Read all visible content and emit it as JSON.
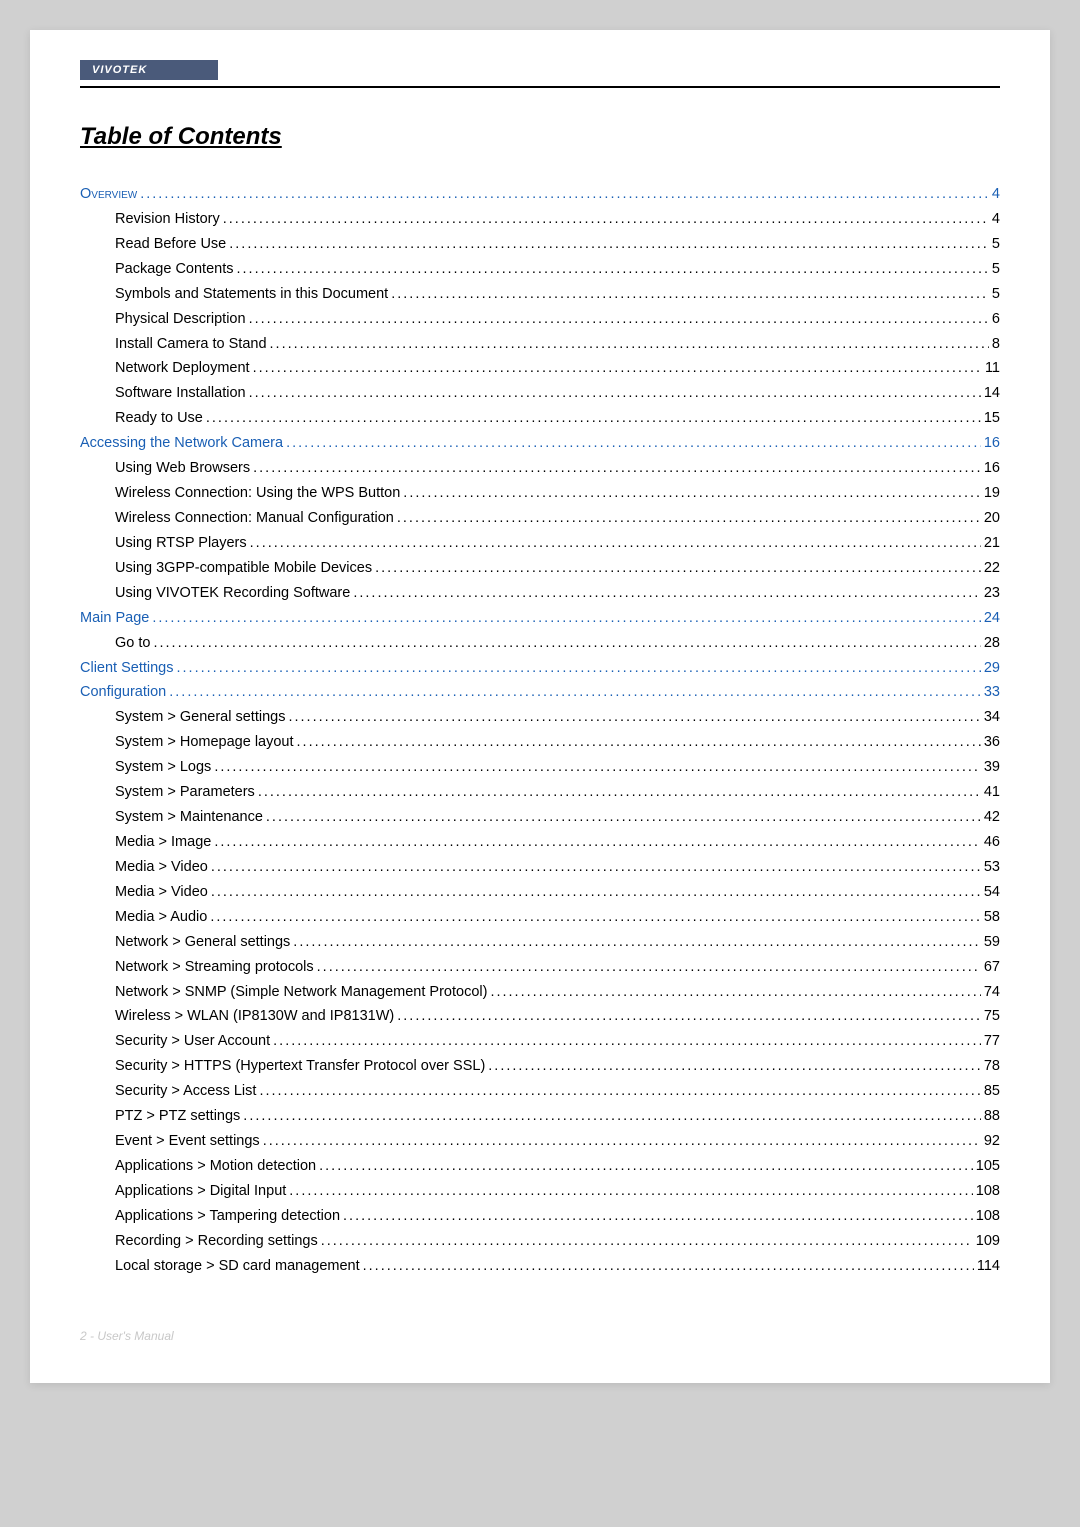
{
  "brand": "VIVOTEK",
  "title": "Table of Contents",
  "footer": "2 - User's Manual",
  "colors": {
    "link": "#1a5fb4",
    "text": "#000000",
    "page_bg": "#ffffff",
    "body_bg": "#d0d0d0",
    "header_bg": "#4a5a7a",
    "footer_text": "#c8c8c8"
  },
  "toc": [
    {
      "label": "Overview",
      "page": "4",
      "level": 0,
      "link": true,
      "smallcaps": true
    },
    {
      "label": "Revision History",
      "page": "4",
      "level": 1,
      "link": false
    },
    {
      "label": "Read Before Use",
      "page": "5",
      "level": 1,
      "link": false
    },
    {
      "label": "Package Contents",
      "page": "5",
      "level": 1,
      "link": false
    },
    {
      "label": "Symbols and Statements in this Document",
      "page": "5",
      "level": 1,
      "link": false
    },
    {
      "label": "Physical Description",
      "page": "6",
      "level": 1,
      "link": false
    },
    {
      "label": "Install Camera to Stand",
      "page": "8",
      "level": 1,
      "link": false
    },
    {
      "label": "Network Deployment",
      "page": "11",
      "level": 1,
      "link": false
    },
    {
      "label": "Software Installation",
      "page": "14",
      "level": 1,
      "link": false
    },
    {
      "label": "Ready to Use",
      "page": "15",
      "level": 1,
      "link": false
    },
    {
      "label": "Accessing the Network Camera",
      "page": "16",
      "level": 0,
      "link": true
    },
    {
      "label": "Using Web Browsers",
      "page": "16",
      "level": 1,
      "link": false
    },
    {
      "label": "Wireless Connection: Using the WPS Button",
      "page": "19",
      "level": 1,
      "link": false
    },
    {
      "label": "Wireless Connection: Manual Configuration",
      "page": "20",
      "level": 1,
      "link": false
    },
    {
      "label": "Using RTSP Players",
      "page": "21",
      "level": 1,
      "link": false
    },
    {
      "label": "Using 3GPP-compatible Mobile Devices",
      "page": "22",
      "level": 1,
      "link": false
    },
    {
      "label": "Using VIVOTEK Recording Software",
      "page": "23",
      "level": 1,
      "link": false
    },
    {
      "label": "Main Page",
      "page": "24",
      "level": 0,
      "link": true
    },
    {
      "label": "Go to",
      "page": "28",
      "level": 1,
      "link": false
    },
    {
      "label": "Client Settings",
      "page": "29",
      "level": 0,
      "link": true
    },
    {
      "label": "Configuration",
      "page": "33",
      "level": 0,
      "link": true
    },
    {
      "label": "System > General settings",
      "page": "34",
      "level": 1,
      "link": false
    },
    {
      "label": "System > Homepage layout ",
      "page": "36",
      "level": 1,
      "link": false
    },
    {
      "label": "System > Logs",
      "page": "39",
      "level": 1,
      "link": false
    },
    {
      "label": "System > Parameters ",
      "page": "41",
      "level": 1,
      "link": false
    },
    {
      "label": "System > Maintenance",
      "page": "42",
      "level": 1,
      "link": false
    },
    {
      "label": "Media > Image  ",
      "page": "46",
      "level": 1,
      "link": false
    },
    {
      "label": "Media > Video",
      "page": "53",
      "level": 1,
      "link": false
    },
    {
      "label": "Media > Video",
      "page": "54",
      "level": 1,
      "link": false
    },
    {
      "label": "Media > Audio",
      "page": "58",
      "level": 1,
      "link": false
    },
    {
      "label": "Network > General settings",
      "page": "59",
      "level": 1,
      "link": false
    },
    {
      "label": "Network > Streaming protocols  ",
      "page": "67",
      "level": 1,
      "link": false
    },
    {
      "label": "Network > SNMP (Simple Network Management Protocol)",
      "page": "74",
      "level": 1,
      "link": false
    },
    {
      "label": "Wireless > WLAN (IP8130W and IP8131W)",
      "page": "75",
      "level": 1,
      "link": false
    },
    {
      "label": "Security > User Account",
      "page": "77",
      "level": 1,
      "link": false
    },
    {
      "label": "Security >  HTTPS (Hypertext Transfer Protocol over SSL)      ",
      "page": "78",
      "level": 1,
      "link": false
    },
    {
      "label": "Security >  Access List ",
      "page": "85",
      "level": 1,
      "link": false
    },
    {
      "label": "PTZ > PTZ settings",
      "page": "88",
      "level": 1,
      "link": false
    },
    {
      "label": "Event > Event settings",
      "page": "92",
      "level": 1,
      "link": false
    },
    {
      "label": "Applications > Motion detection",
      "page": "105",
      "level": 1,
      "link": false
    },
    {
      "label": "Applications > Digital Input",
      "page": "108",
      "level": 1,
      "link": false
    },
    {
      "label": "Applications > Tampering detection ",
      "page": "108",
      "level": 1,
      "link": false
    },
    {
      "label": "Recording > Recording settings ",
      "page": "109",
      "level": 1,
      "link": false
    },
    {
      "label": "Local storage > SD card management",
      "page": "114",
      "level": 1,
      "link": false
    }
  ]
}
